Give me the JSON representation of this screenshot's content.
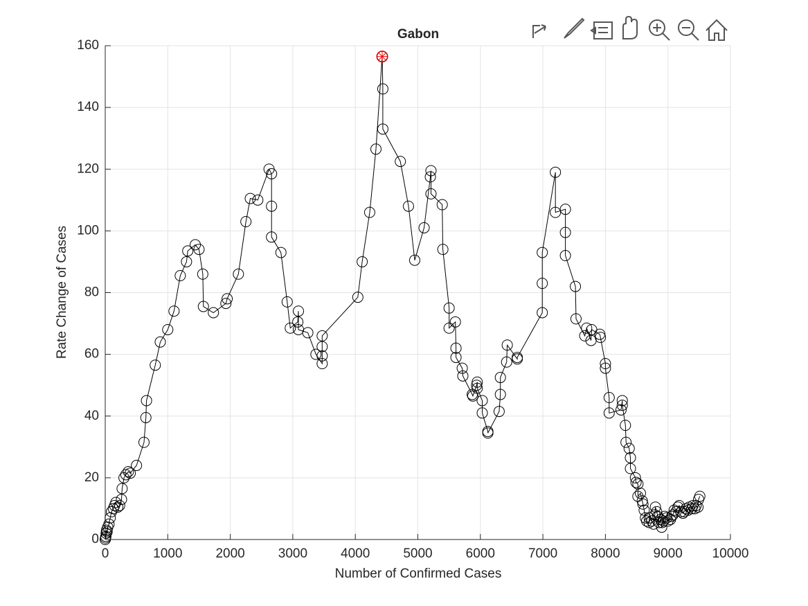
{
  "chart_data": {
    "type": "scatter-line",
    "title": "Gabon",
    "x_label": "Number of Confirmed Cases",
    "y_label": "Rate Change of Cases",
    "color": "#000000",
    "grid": true,
    "xlim": [
      0,
      10000
    ],
    "ylim": [
      0,
      160
    ],
    "xticks": [
      0,
      1000,
      2000,
      3000,
      4000,
      5000,
      6000,
      7000,
      8000,
      9000,
      10000
    ],
    "yticks": [
      0,
      20,
      40,
      60,
      80,
      100,
      120,
      140,
      160
    ],
    "x": [
      0,
      5,
      10,
      15,
      20,
      30,
      40,
      60,
      80,
      100,
      130,
      150,
      170,
      200,
      230,
      260,
      270,
      300,
      330,
      370,
      400,
      500,
      620,
      650,
      660,
      800,
      880,
      1000,
      1100,
      1200,
      1300,
      1320,
      1440,
      1500,
      1560,
      1570,
      1730,
      1930,
      1950,
      2130,
      2250,
      2320,
      2440,
      2620,
      2660,
      2660,
      2660,
      2810,
      2910,
      2960,
      3080,
      3090,
      3090,
      3240,
      3370,
      3470,
      3470,
      3470,
      3470,
      4040,
      4110,
      4230,
      4330,
      4430,
      4440,
      4440,
      4720,
      4850,
      4950,
      5100,
      5200,
      5210,
      5210,
      5390,
      5400,
      5500,
      5500,
      5600,
      5610,
      5610,
      5710,
      5720,
      5870,
      5880,
      5940,
      5950,
      5950,
      6030,
      6030,
      6120,
      6120,
      6300,
      6320,
      6320,
      6420,
      6430,
      6590,
      6590,
      6990,
      6990,
      6990,
      7200,
      7200,
      7360,
      7360,
      7360,
      7520,
      7530,
      7670,
      7700,
      7770,
      7780,
      7910,
      7920,
      8000,
      8000,
      8060,
      8060,
      8250,
      8270,
      8270,
      8320,
      8330,
      8380,
      8400,
      8400,
      8480,
      8490,
      8520,
      8520,
      8560,
      8590,
      8600,
      8620,
      8640,
      8660,
      8700,
      8700,
      8740,
      8770,
      8790,
      8800,
      8820,
      8840,
      8860,
      8880,
      8900,
      8910,
      8930,
      8950,
      8980,
      9000,
      9040,
      9060,
      9080,
      9100,
      9130,
      9160,
      9180,
      9210,
      9240,
      9260,
      9290,
      9320,
      9340,
      9380,
      9400,
      9430,
      9450,
      9480,
      9490,
      9510
    ],
    "y": [
      0,
      0.5,
      1,
      2,
      3,
      2.5,
      4,
      5,
      7,
      9,
      10,
      11,
      12,
      10.5,
      11,
      13,
      16.5,
      20,
      21,
      22,
      21.5,
      24,
      31.5,
      39.5,
      45,
      56.5,
      64,
      68,
      74,
      85.5,
      90,
      93.5,
      95.5,
      94,
      86,
      75.5,
      73.5,
      76.5,
      78,
      86,
      103,
      110.5,
      110,
      120,
      118.5,
      108,
      98,
      93,
      77,
      68.5,
      70.5,
      74,
      68,
      67,
      60,
      57,
      59.5,
      62.5,
      66,
      78.5,
      90,
      106,
      126.5,
      156.5,
      146,
      133,
      122.5,
      108,
      90.5,
      101,
      117.5,
      119.5,
      112,
      108.5,
      94,
      75,
      68.5,
      70.5,
      62,
      59,
      55.5,
      53,
      47,
      46.5,
      50,
      51,
      49,
      45,
      41,
      35,
      34.5,
      41.5,
      47,
      52.5,
      57.5,
      63,
      58.5,
      59,
      73.5,
      83,
      93,
      119,
      106,
      107,
      99.5,
      92,
      82,
      71.5,
      66,
      68.5,
      64.5,
      68,
      66.5,
      65.5,
      57,
      55.5,
      46,
      41,
      42,
      45,
      43.5,
      37,
      31.5,
      29.5,
      26.5,
      23,
      20,
      18.5,
      18,
      14,
      15,
      12.5,
      11.5,
      9.5,
      7,
      6,
      5.5,
      7,
      6,
      5,
      8,
      10.5,
      9,
      7.5,
      5.5,
      6.5,
      4,
      5.5,
      6,
      7.5,
      7,
      6,
      6.5,
      7.5,
      8,
      9.5,
      9,
      10.5,
      11,
      9,
      8.5,
      9,
      10,
      9.5,
      10.5,
      10,
      11,
      10,
      11,
      10.5,
      13,
      14
    ],
    "highlight": {
      "x": 4430,
      "y": 156.5,
      "color": "#ff0000"
    }
  }
}
